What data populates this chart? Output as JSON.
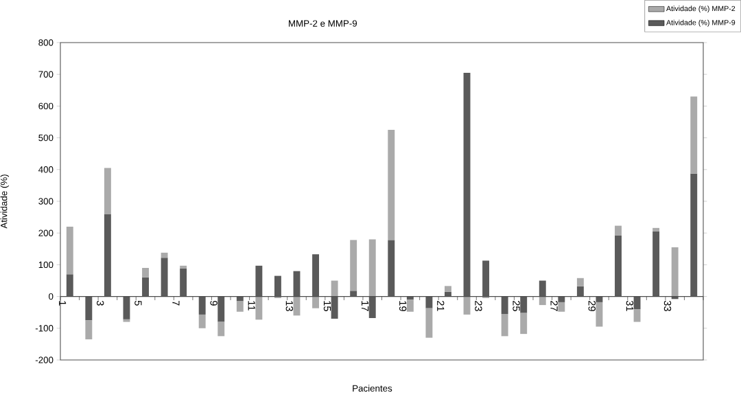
{
  "chart_data": {
    "type": "bar",
    "stacked": true,
    "title": "MMP-2 e MMP-9",
    "xlabel": "Pacientes",
    "ylabel": "Atividade (%)",
    "categories": [
      "1",
      null,
      "3",
      null,
      "5",
      null,
      "7",
      null,
      "9",
      null,
      "11",
      null,
      "13",
      null,
      "15",
      null,
      "17",
      null,
      "19",
      null,
      "21",
      null,
      "23",
      null,
      "25",
      null,
      "27",
      null,
      "29",
      null,
      "31",
      null,
      "33",
      null
    ],
    "series": [
      {
        "name": "Atividade (%) MMP-9",
        "color": "#5a5a5a",
        "values": [
          70,
          -75,
          260,
          -72,
          60,
          122,
          88,
          -57,
          -80,
          -15,
          97,
          65,
          80,
          133,
          -70,
          18,
          -68,
          178,
          -10,
          -37,
          15,
          705,
          113,
          -55,
          -52,
          50,
          -18,
          32,
          -18,
          193,
          -40,
          205,
          -8,
          387
        ]
      },
      {
        "name": "Atividade (%) MMP-2",
        "color": "#aaaaaa",
        "values": [
          150,
          -60,
          145,
          -8,
          30,
          16,
          9,
          -43,
          -45,
          -33,
          -73,
          -5,
          -60,
          -37,
          50,
          160,
          180,
          347,
          -38,
          -93,
          18,
          -57,
          -5,
          -70,
          -66,
          -27,
          -30,
          26,
          -77,
          30,
          -40,
          11,
          155,
          243
        ]
      }
    ],
    "ylim": [
      -200,
      800
    ],
    "yticks": [
      -200,
      -100,
      0,
      100,
      200,
      300,
      400,
      500,
      600,
      700,
      800
    ],
    "legend": "top right"
  }
}
